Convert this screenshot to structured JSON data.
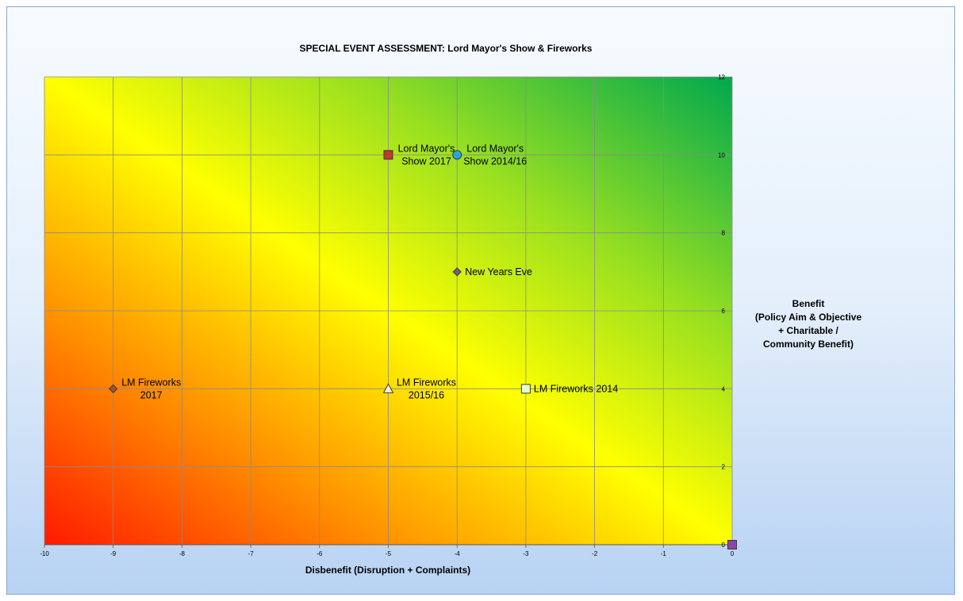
{
  "chart_data": {
    "type": "scatter",
    "title": "SPECIAL EVENT ASSESSMENT: Lord Mayor's Show & Fireworks",
    "xlabel": "Disbenefit (Disruption + Complaints)",
    "ylabel": [
      "Benefit",
      "(Policy Aim & Objective",
      "+ Charitable /",
      "Community Benefit)"
    ],
    "xlim": [
      -10,
      0
    ],
    "ylim": [
      0,
      12
    ],
    "x_ticks": [
      "-10",
      "-9",
      "-8",
      "-7",
      "-6",
      "-5",
      "-4",
      "-3",
      "-2",
      "-1",
      "0"
    ],
    "y_ticks": [
      "0",
      "2",
      "4",
      "6",
      "8",
      "10",
      "12"
    ],
    "grid": true,
    "background": "gradient red (bottom-left) to yellow to green (top-right)",
    "colors": {
      "low": "#ff1a00",
      "mid": "#ffff00",
      "high": "#00a84f"
    },
    "points": [
      {
        "label": [
          "Lord Mayor's",
          "Show 2017"
        ],
        "x": -5,
        "y": 10,
        "marker": "square",
        "color": "#c0392b"
      },
      {
        "label": [
          "Lord Mayor's",
          "Show 2014/16"
        ],
        "x": -4,
        "y": 10,
        "marker": "circle",
        "color": "#29a3e0"
      },
      {
        "label": [
          "New Years Eve"
        ],
        "x": -4,
        "y": 7,
        "marker": "diamond",
        "color": "#7a5c7a"
      },
      {
        "label": [
          "LM Fireworks",
          "2017"
        ],
        "x": -9,
        "y": 4,
        "marker": "diamond",
        "color": "#a0522d"
      },
      {
        "label": [
          "LM Fireworks",
          "2015/16"
        ],
        "x": -5,
        "y": 4,
        "marker": "triangle",
        "color": "#f5f5d0"
      },
      {
        "label": [
          "LM Fireworks 2014"
        ],
        "x": -3,
        "y": 4,
        "marker": "square",
        "color": "#e8ffd8"
      },
      {
        "label": [],
        "x": 0,
        "y": 0,
        "marker": "square",
        "color": "#8e44ad"
      }
    ]
  }
}
